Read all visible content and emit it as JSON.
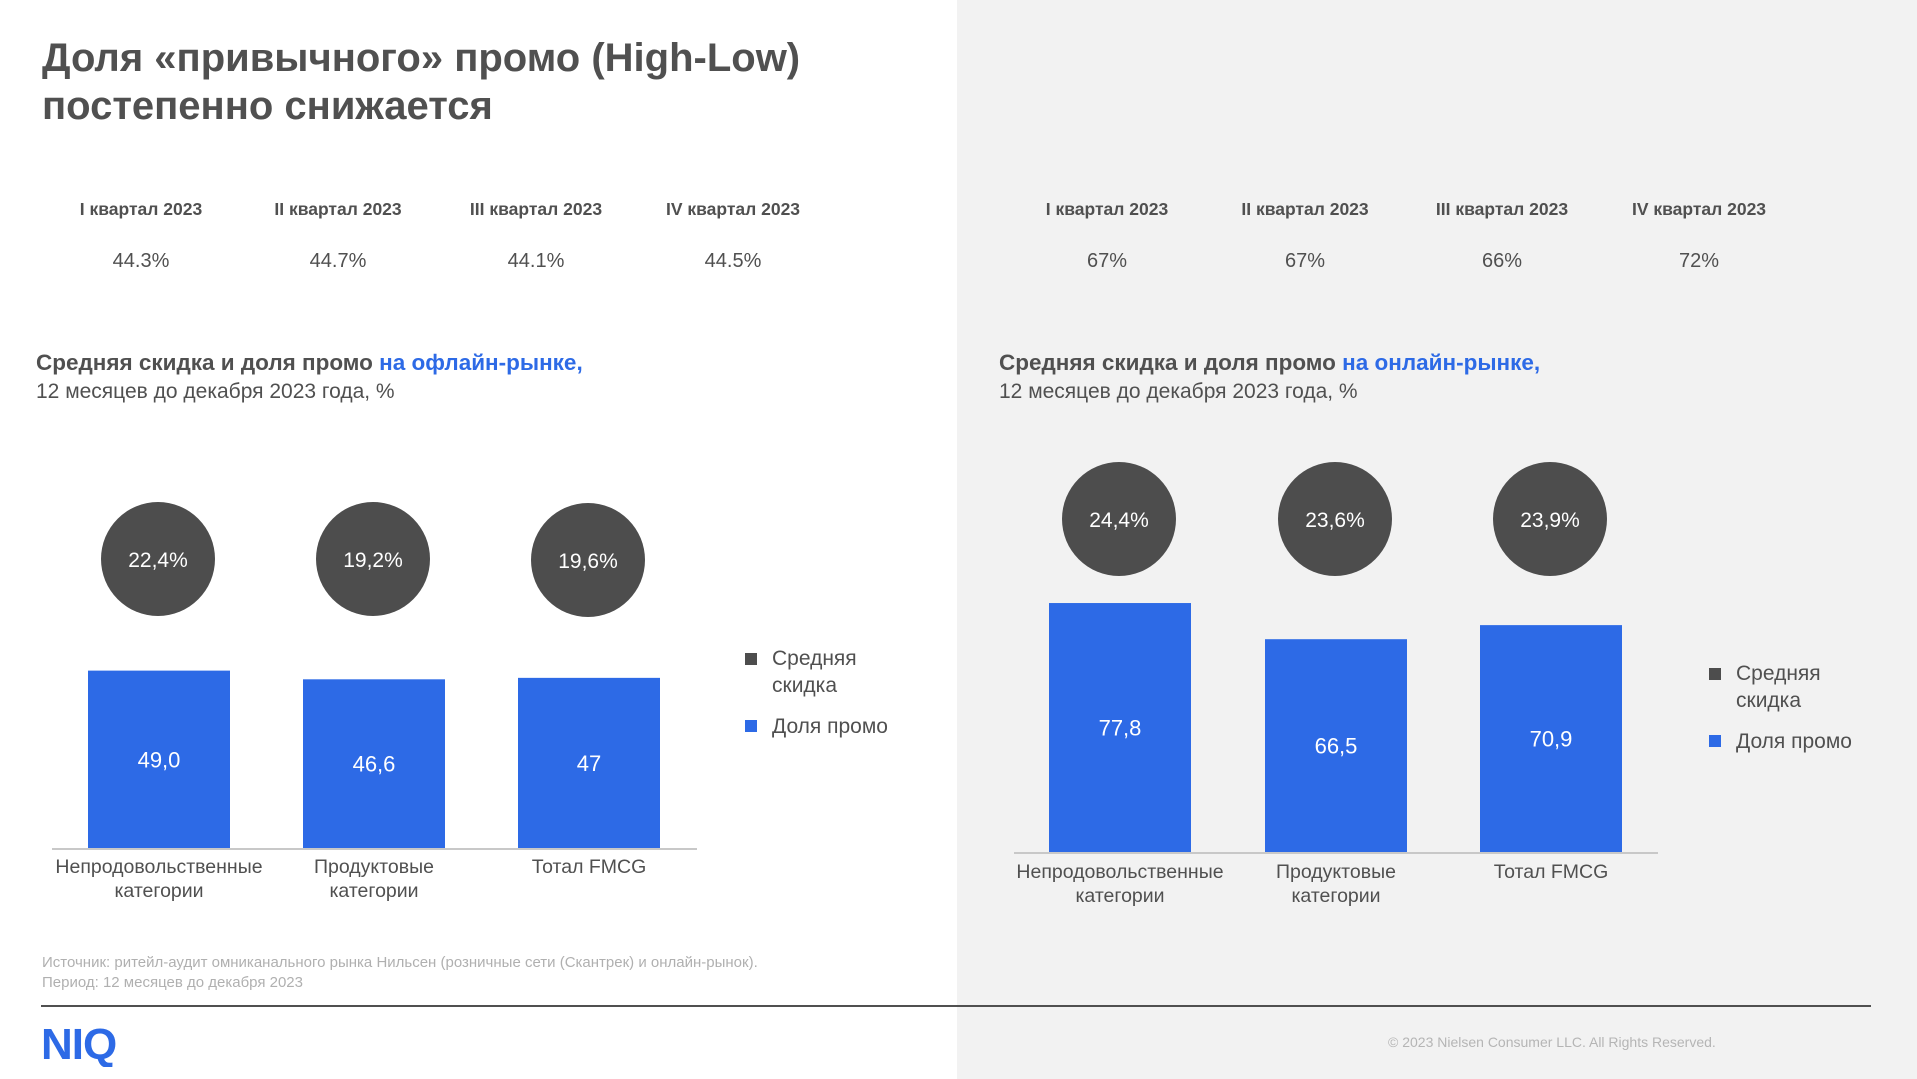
{
  "title": "Доля «привычного» промо (High-Low) постепенно снижается",
  "quarters": {
    "offline": [
      {
        "label": "I квартал 2023",
        "value": "44.3%"
      },
      {
        "label": "II квартал 2023",
        "value": "44.7%"
      },
      {
        "label": "III квартал 2023",
        "value": "44.1%"
      },
      {
        "label": "IV квартал 2023",
        "value": "44.5%"
      }
    ],
    "online": [
      {
        "label": "I квартал 2023",
        "value": "67%"
      },
      {
        "label": "II квартал 2023",
        "value": "67%"
      },
      {
        "label": "III квартал 2023",
        "value": "66%"
      },
      {
        "label": "IV квартал 2023",
        "value": "72%"
      }
    ]
  },
  "sections": {
    "offline": {
      "heading_dark": "Средняя скидка и доля промо",
      "heading_blue": "на офлайн-рынке,",
      "subheading": "12 месяцев до декабря 2023 года, %"
    },
    "online": {
      "heading_dark": "Средняя скидка и доля промо",
      "heading_blue": "на онлайн-рынке,",
      "subheading": "12 месяцев до декабря 2023 года, %"
    }
  },
  "legend": {
    "discount": "Средняя скидка",
    "promo": "Доля промо"
  },
  "colors": {
    "bar": "#2d6ae6",
    "circle": "#4d4d4d",
    "text": "#505050",
    "accent_text": "#2d6ae6",
    "right_panel_bg": "#f2f2f2",
    "logo": "#2d6ae6"
  },
  "chart_data": [
    {
      "type": "bar",
      "categories": [
        "Непродовольственные категории",
        "Продуктовые категории",
        "Тотал FMCG"
      ],
      "series": [
        {
          "name": "Доля промо",
          "values": [
            49.0,
            46.6,
            47
          ],
          "labels": [
            "49,0",
            "46,6",
            "47"
          ]
        },
        {
          "name": "Средняя скидка",
          "values": [
            22.4,
            19.2,
            19.6
          ],
          "labels": [
            "22,4%",
            "19,2%",
            "19,6%"
          ]
        }
      ],
      "legend": "right"
    },
    {
      "type": "bar",
      "categories": [
        "Непродовольственные категории",
        "Продуктовые категории",
        "Тотал FMCG"
      ],
      "series": [
        {
          "name": "Доля промо",
          "values": [
            77.8,
            66.5,
            70.9
          ],
          "labels": [
            "77,8",
            "66,5",
            "70,9"
          ]
        },
        {
          "name": "Средняя скидка",
          "values": [
            24.4,
            23.6,
            23.9
          ],
          "labels": [
            "24,4%",
            "23,6%",
            "23,9%"
          ]
        }
      ],
      "legend": "right"
    }
  ],
  "footnote": {
    "source": "Источник: ритейл-аудит омниканального рынка Нильсен (розничные сети (Скантрек) и онлайн-рынок).",
    "period": "Период: 12 месяцев до декабря 2023"
  },
  "copyright": "© 2023 Nielsen Consumer LLC. All Rights Reserved.",
  "logo_text": "NIQ"
}
